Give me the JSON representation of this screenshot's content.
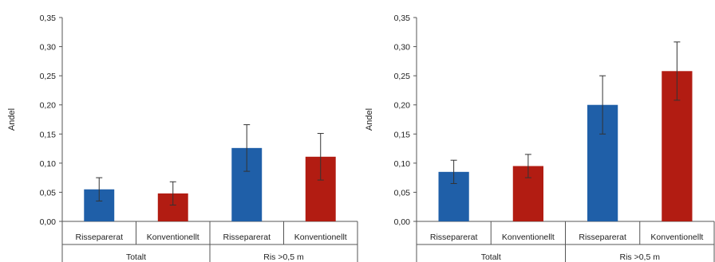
{
  "chart_data": [
    {
      "type": "bar",
      "ylabel": "Andel",
      "ylim": [
        0,
        0.35
      ],
      "yticks": [
        "0,00",
        "0,05",
        "0,10",
        "0,15",
        "0,20",
        "0,25",
        "0,30",
        "0,35"
      ],
      "groups": [
        "Totalt",
        "Ris >0,5 m"
      ],
      "categories": [
        "Risseparerat",
        "Konventionellt",
        "Risseparerat",
        "Konventionellt"
      ],
      "values": [
        0.055,
        0.048,
        0.126,
        0.111
      ],
      "errors": [
        0.02,
        0.02,
        0.04,
        0.04
      ],
      "colors": [
        "#1f5fa8",
        "#b21c12",
        "#1f5fa8",
        "#b21c12"
      ],
      "grid": false,
      "legend": "none"
    },
    {
      "type": "bar",
      "ylabel": "Andel",
      "ylim": [
        0,
        0.35
      ],
      "yticks": [
        "0,00",
        "0,05",
        "0,10",
        "0,15",
        "0,20",
        "0,25",
        "0,30",
        "0,35"
      ],
      "groups": [
        "Totalt",
        "Ris >0,5 m"
      ],
      "categories": [
        "Risseparerat",
        "Konventionellt",
        "Risseparerat",
        "Konventionellt"
      ],
      "values": [
        0.085,
        0.095,
        0.2,
        0.258
      ],
      "errors": [
        0.02,
        0.02,
        0.05,
        0.05
      ],
      "colors": [
        "#1f5fa8",
        "#b21c12",
        "#1f5fa8",
        "#b21c12"
      ],
      "grid": false,
      "legend": "none"
    }
  ]
}
